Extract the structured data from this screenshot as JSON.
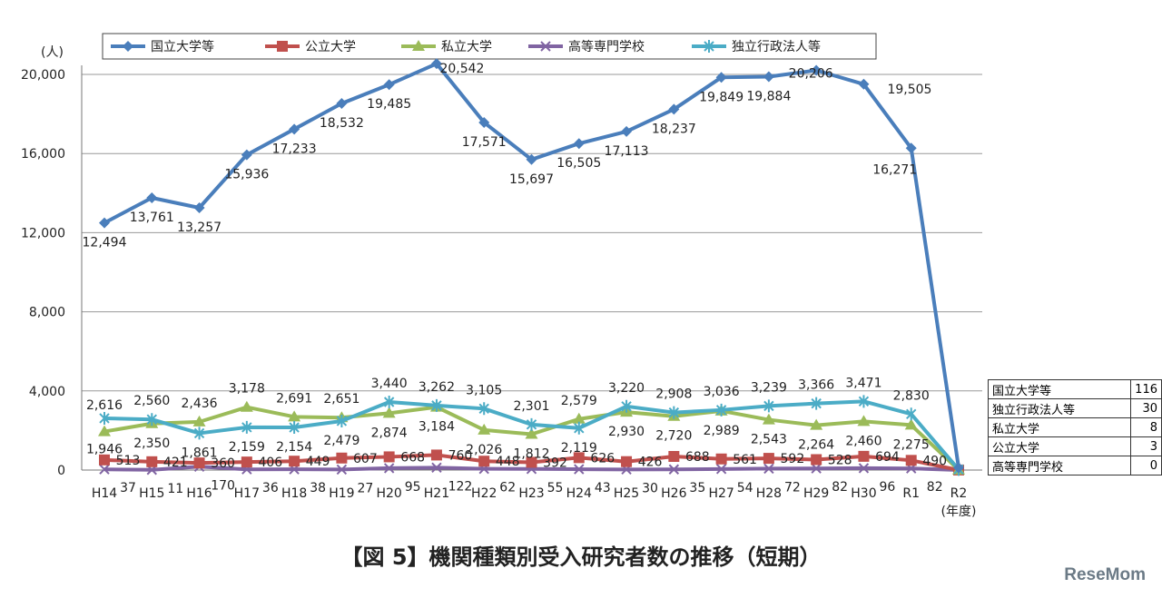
{
  "chart_data": {
    "type": "line",
    "title": "【図 5】機関種類別受入研究者数の推移（短期）",
    "ylabel": "(人)",
    "xlabel": "(年度)",
    "ylim": [
      0,
      20000
    ],
    "yticks": [
      "0",
      "4,000",
      "8,000",
      "12,000",
      "16,000",
      "20,000"
    ],
    "grid": true,
    "legend": "top",
    "categories": [
      "H14",
      "H15",
      "H16",
      "H17",
      "H18",
      "H19",
      "H20",
      "H21",
      "H22",
      "H23",
      "H24",
      "H25",
      "H26",
      "H27",
      "H28",
      "H29",
      "H30",
      "R1",
      "R2"
    ],
    "series": [
      {
        "name": "国立大学等",
        "color": "#4a7ebb",
        "marker": "diamond",
        "values": [
          12494,
          13761,
          13257,
          15936,
          17233,
          18532,
          19485,
          20542,
          17571,
          15697,
          16505,
          17113,
          18237,
          19849,
          19884,
          20206,
          19505,
          16271,
          116
        ]
      },
      {
        "name": "公立大学",
        "color": "#c0504d",
        "marker": "square",
        "values": [
          513,
          421,
          360,
          406,
          449,
          607,
          668,
          760,
          448,
          392,
          626,
          426,
          688,
          561,
          592,
          528,
          694,
          490,
          3
        ]
      },
      {
        "name": "私立大学",
        "color": "#9bbb59",
        "marker": "triangle",
        "values": [
          1946,
          2350,
          2436,
          3178,
          2691,
          2651,
          2874,
          3184,
          2026,
          1812,
          2579,
          2930,
          2720,
          2989,
          2543,
          2264,
          2460,
          2275,
          8
        ]
      },
      {
        "name": "高等専門学校",
        "color": "#8064a2",
        "marker": "x",
        "values": [
          37,
          11,
          170,
          36,
          38,
          27,
          95,
          122,
          62,
          55,
          43,
          30,
          35,
          54,
          72,
          82,
          96,
          82,
          0
        ]
      },
      {
        "name": "独立行政法人等",
        "color": "#4bacc6",
        "marker": "star",
        "values": [
          2616,
          2560,
          1861,
          2159,
          2154,
          2479,
          3440,
          3262,
          3105,
          2301,
          2119,
          3220,
          2908,
          3036,
          3239,
          3366,
          3471,
          2830,
          30
        ]
      }
    ],
    "r2_table": [
      {
        "name": "国立大学等",
        "value": "116"
      },
      {
        "name": "独立行政法人等",
        "value": "30"
      },
      {
        "name": "私立大学",
        "value": "8"
      },
      {
        "name": "公立大学",
        "value": "3"
      },
      {
        "name": "高等専門学校",
        "value": "0"
      }
    ]
  },
  "logo": "ReseMom"
}
